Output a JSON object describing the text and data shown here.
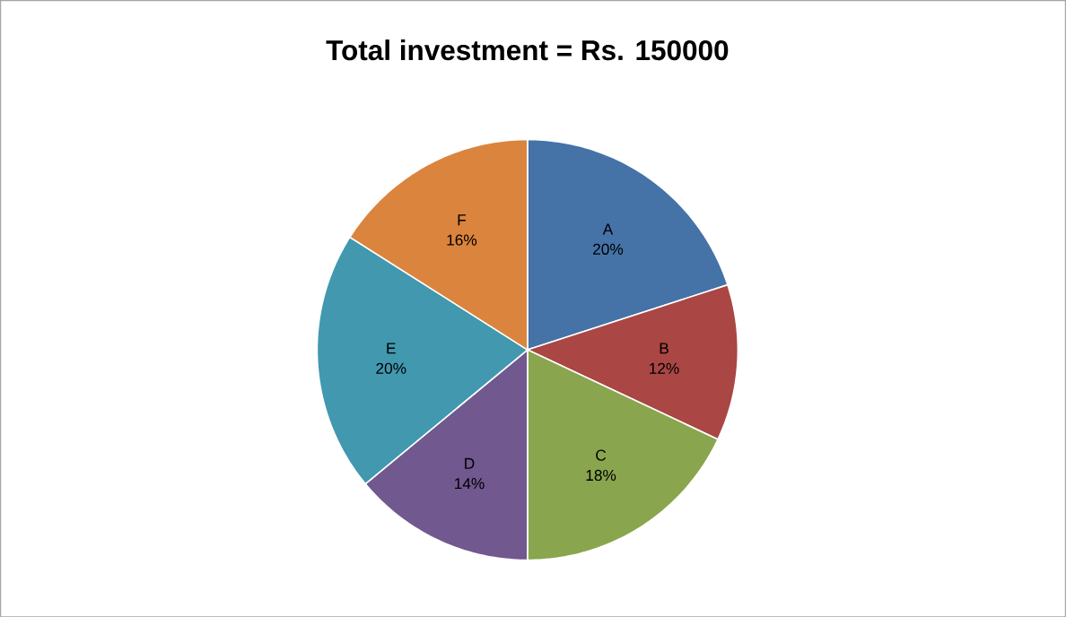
{
  "chart_data": {
    "type": "pie",
    "title": "Total investment = Rs. 150000",
    "categories": [
      "A",
      "B",
      "C",
      "D",
      "E",
      "F"
    ],
    "values": [
      20,
      12,
      18,
      14,
      20,
      16
    ],
    "value_labels": [
      "20%",
      "12%",
      "18%",
      "14%",
      "20%",
      "16%"
    ],
    "colors": [
      "#4572a7",
      "#aa4643",
      "#89a54e",
      "#71588f",
      "#4198af",
      "#db843d"
    ]
  }
}
